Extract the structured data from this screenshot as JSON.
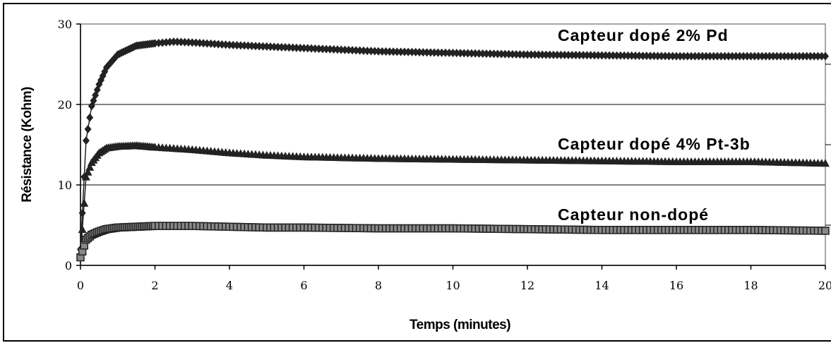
{
  "chart_data": {
    "type": "line",
    "xlabel": "Temps (minutes)",
    "ylabel": "Résistance (Kohm)",
    "xlim": [
      0,
      20
    ],
    "ylim": [
      0,
      30
    ],
    "xticks": [
      0,
      2,
      4,
      6,
      8,
      10,
      12,
      14,
      16,
      18,
      20
    ],
    "yticks": [
      0,
      10,
      20,
      30
    ],
    "grid": "horizontal",
    "legend": "inline labels",
    "series": [
      {
        "name": "Capteur dopé 2% Pd",
        "marker": "diamond",
        "x": [
          0,
          0.15,
          0.3,
          0.5,
          0.7,
          1.0,
          1.5,
          2,
          2.5,
          3,
          4,
          5,
          6,
          8,
          10,
          12,
          14,
          16,
          18,
          20
        ],
        "y": [
          2,
          15.5,
          19.8,
          22.5,
          24.6,
          26.2,
          27.3,
          27.6,
          27.8,
          27.7,
          27.4,
          27.2,
          27.0,
          26.6,
          26.4,
          26.2,
          26.1,
          26.0,
          26.0,
          26.0
        ]
      },
      {
        "name": "Capteur dopé 4% Pt-3b",
        "marker": "triangle",
        "x": [
          0,
          0.15,
          0.3,
          0.5,
          0.7,
          1.0,
          1.5,
          2,
          3,
          4,
          5,
          6,
          8,
          10,
          12,
          14,
          16,
          18,
          20
        ],
        "y": [
          1.2,
          11.0,
          12.8,
          14.0,
          14.6,
          14.8,
          14.9,
          14.7,
          14.4,
          14.0,
          13.7,
          13.5,
          13.3,
          13.2,
          13.1,
          13.0,
          12.9,
          12.9,
          12.7
        ]
      },
      {
        "name": "Capteur non-dopé",
        "marker": "square",
        "x": [
          0,
          0.15,
          0.3,
          0.5,
          0.7,
          1.0,
          1.5,
          2,
          3,
          4,
          5,
          6,
          8,
          10,
          12,
          14,
          16,
          18,
          20
        ],
        "y": [
          1.0,
          3.2,
          3.8,
          4.2,
          4.5,
          4.7,
          4.8,
          4.9,
          4.9,
          4.8,
          4.7,
          4.7,
          4.6,
          4.6,
          4.5,
          4.4,
          4.4,
          4.4,
          4.3
        ]
      }
    ]
  }
}
